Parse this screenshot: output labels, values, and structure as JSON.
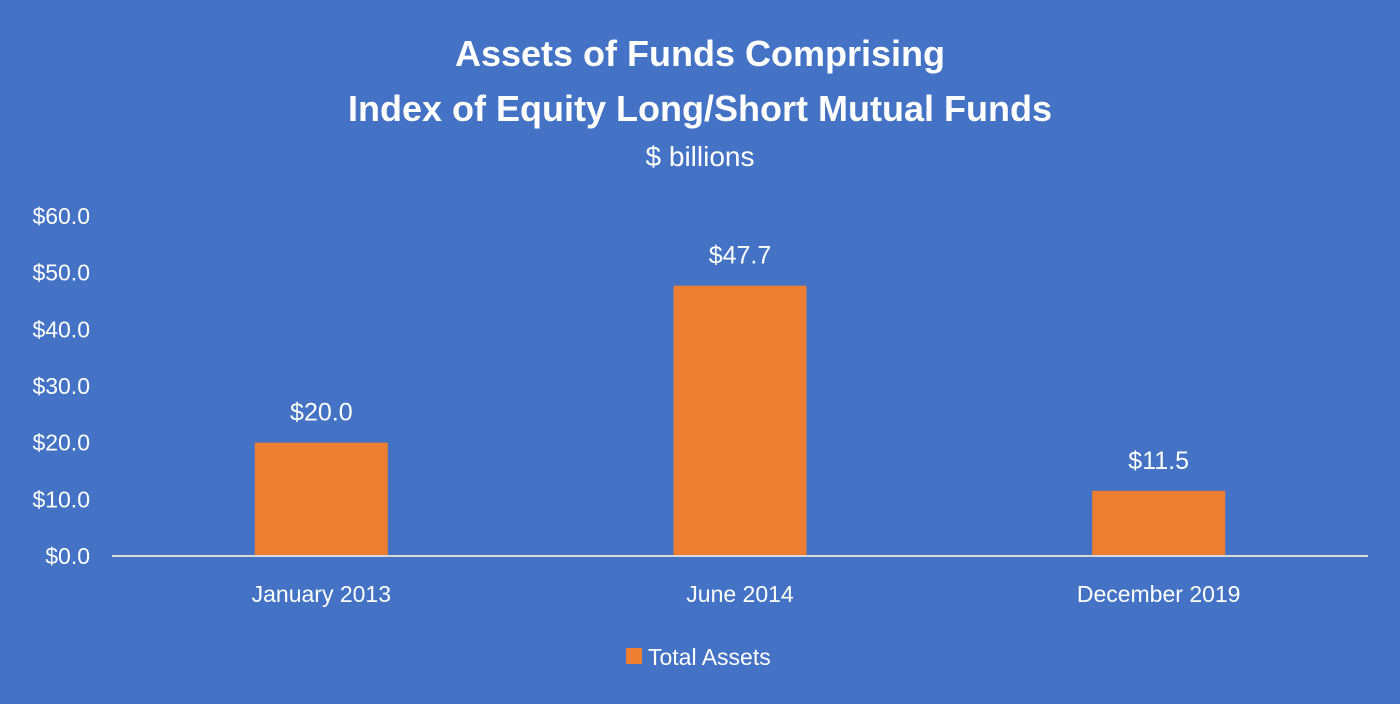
{
  "chart_data": {
    "type": "bar",
    "title_lines": [
      "Assets of Funds Comprising",
      "Index of Equity Long/Short Mutual Funds"
    ],
    "subtitle": "$ billions",
    "categories": [
      "January 2013",
      "June 2014",
      "December 2019"
    ],
    "series": [
      {
        "name": "Total Assets",
        "values": [
          20.0,
          47.7,
          11.5
        ],
        "data_labels": [
          "$20.0",
          "$47.7",
          "$11.5"
        ],
        "color": "#ED7D31"
      }
    ],
    "ylim": [
      0,
      60
    ],
    "y_ticks": [
      0,
      10,
      20,
      30,
      40,
      50,
      60
    ],
    "y_tick_labels": [
      "$0.0",
      "$10.0",
      "$20.0",
      "$30.0",
      "$40.0",
      "$50.0",
      "$60.0"
    ],
    "grid": false,
    "legend_position": "bottom",
    "background_color": "#4472C4",
    "text_color": "#FFFFFF",
    "axis_color": "#D9D9D9"
  }
}
